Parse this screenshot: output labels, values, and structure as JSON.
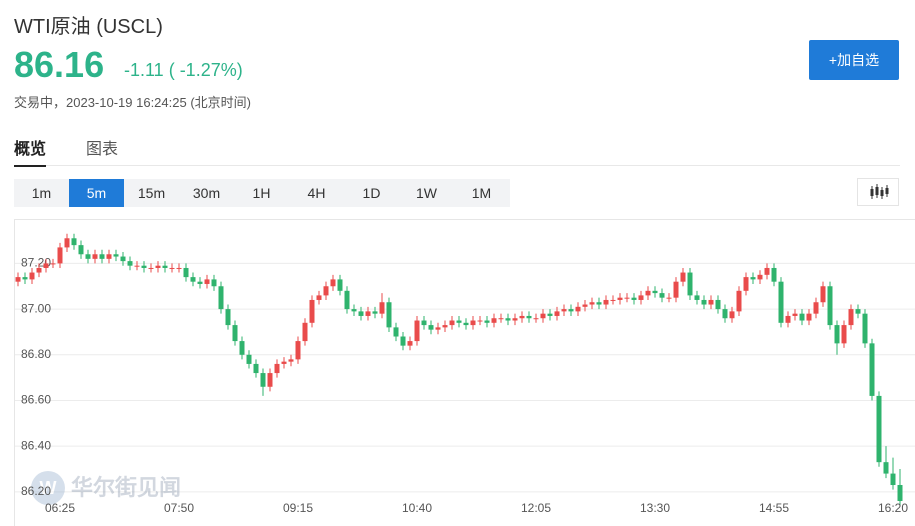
{
  "header": {
    "title": "WTI原油 (USCL)",
    "price": "86.16",
    "change": "-1.11 ( -1.27%)",
    "status": "交易中，2023-10-19 16:24:25 (北京时间)",
    "button": "+加自选"
  },
  "tabs": [
    "概览",
    "图表"
  ],
  "active_tab": "概览",
  "intervals": [
    "1m",
    "5m",
    "15m",
    "30m",
    "1H",
    "4H",
    "1D",
    "1W",
    "1M"
  ],
  "active_interval": "5m",
  "watermark": "华尔街见闻",
  "chart_data": {
    "type": "candlestick",
    "up_color": "#e94b4b",
    "down_color": "#2fb36d",
    "grid": true,
    "ylim": [
      86.16,
      87.39
    ],
    "yticks": [
      {
        "value": 86.2,
        "label": "86.20"
      },
      {
        "value": 86.4,
        "label": "86.40"
      },
      {
        "value": 86.6,
        "label": "86.60"
      },
      {
        "value": 86.8,
        "label": "86.80"
      },
      {
        "value": 87.0,
        "label": "87.00"
      },
      {
        "value": 87.2,
        "label": "87.20"
      }
    ],
    "categories": [
      null,
      null,
      null,
      null,
      null,
      null,
      "06:25",
      null,
      null,
      null,
      null,
      null,
      null,
      null,
      null,
      null,
      null,
      null,
      null,
      null,
      null,
      null,
      null,
      "07:50",
      null,
      null,
      null,
      null,
      null,
      null,
      null,
      null,
      null,
      null,
      null,
      null,
      null,
      null,
      null,
      null,
      "09:15",
      null,
      null,
      null,
      null,
      null,
      null,
      null,
      null,
      null,
      null,
      null,
      null,
      null,
      null,
      null,
      null,
      "10:40",
      null,
      null,
      null,
      null,
      null,
      null,
      null,
      null,
      null,
      null,
      null,
      null,
      null,
      null,
      null,
      null,
      "12:05",
      null,
      null,
      null,
      null,
      null,
      null,
      null,
      null,
      null,
      null,
      null,
      null,
      null,
      null,
      null,
      null,
      "13:30",
      null,
      null,
      null,
      null,
      null,
      null,
      null,
      null,
      null,
      null,
      null,
      null,
      null,
      null,
      null,
      null,
      "14:55",
      null,
      null,
      null,
      null,
      null,
      null,
      null,
      null,
      null,
      null,
      null,
      null,
      null,
      null,
      null,
      null,
      "16:20",
      null
    ],
    "candles": [
      [
        87.12,
        87.16,
        87.1,
        87.14
      ],
      [
        87.14,
        87.16,
        87.11,
        87.13
      ],
      [
        87.13,
        87.18,
        87.11,
        87.16
      ],
      [
        87.16,
        87.2,
        87.14,
        87.18
      ],
      [
        87.18,
        87.22,
        87.16,
        87.2
      ],
      [
        87.2,
        87.22,
        87.18,
        87.2
      ],
      [
        87.2,
        87.29,
        87.18,
        87.27
      ],
      [
        87.27,
        87.33,
        87.25,
        87.31
      ],
      [
        87.31,
        87.33,
        87.26,
        87.28
      ],
      [
        87.28,
        87.3,
        87.22,
        87.24
      ],
      [
        87.24,
        87.26,
        87.2,
        87.22
      ],
      [
        87.22,
        87.26,
        87.2,
        87.24
      ],
      [
        87.24,
        87.26,
        87.2,
        87.22
      ],
      [
        87.22,
        87.26,
        87.2,
        87.24
      ],
      [
        87.24,
        87.26,
        87.21,
        87.23
      ],
      [
        87.23,
        87.25,
        87.19,
        87.21
      ],
      [
        87.21,
        87.23,
        87.17,
        87.19
      ],
      [
        87.19,
        87.21,
        87.17,
        87.19
      ],
      [
        87.19,
        87.21,
        87.16,
        87.18
      ],
      [
        87.18,
        87.2,
        87.16,
        87.18
      ],
      [
        87.18,
        87.21,
        87.16,
        87.19
      ],
      [
        87.19,
        87.21,
        87.16,
        87.18
      ],
      [
        87.18,
        87.2,
        87.16,
        87.18
      ],
      [
        87.18,
        87.2,
        87.16,
        87.18
      ],
      [
        87.18,
        87.2,
        87.12,
        87.14
      ],
      [
        87.14,
        87.16,
        87.1,
        87.12
      ],
      [
        87.12,
        87.14,
        87.09,
        87.11
      ],
      [
        87.11,
        87.15,
        87.09,
        87.13
      ],
      [
        87.13,
        87.15,
        87.08,
        87.1
      ],
      [
        87.1,
        87.12,
        86.98,
        87.0
      ],
      [
        87.0,
        87.02,
        86.91,
        86.93
      ],
      [
        86.93,
        86.95,
        86.84,
        86.86
      ],
      [
        86.86,
        86.88,
        86.78,
        86.8
      ],
      [
        86.8,
        86.82,
        86.74,
        86.76
      ],
      [
        86.76,
        86.78,
        86.7,
        86.72
      ],
      [
        86.72,
        86.74,
        86.62,
        86.66
      ],
      [
        86.66,
        86.74,
        86.64,
        86.72
      ],
      [
        86.72,
        86.78,
        86.7,
        86.76
      ],
      [
        86.76,
        86.79,
        86.74,
        86.77
      ],
      [
        86.77,
        86.8,
        86.75,
        86.78
      ],
      [
        86.78,
        86.88,
        86.76,
        86.86
      ],
      [
        86.86,
        86.96,
        86.84,
        86.94
      ],
      [
        86.94,
        87.06,
        86.92,
        87.04
      ],
      [
        87.04,
        87.08,
        87.02,
        87.06
      ],
      [
        87.06,
        87.12,
        87.04,
        87.1
      ],
      [
        87.1,
        87.15,
        87.08,
        87.13
      ],
      [
        87.13,
        87.15,
        87.06,
        87.08
      ],
      [
        87.08,
        87.1,
        86.98,
        87.0
      ],
      [
        87.0,
        87.02,
        86.97,
        86.99
      ],
      [
        86.99,
        87.01,
        86.95,
        86.97
      ],
      [
        86.97,
        87.01,
        86.95,
        86.99
      ],
      [
        86.99,
        87.01,
        86.96,
        86.98
      ],
      [
        86.98,
        87.07,
        86.96,
        87.03
      ],
      [
        87.03,
        87.05,
        86.9,
        86.92
      ],
      [
        86.92,
        86.94,
        86.86,
        86.88
      ],
      [
        86.88,
        86.9,
        86.82,
        86.84
      ],
      [
        86.84,
        86.88,
        86.82,
        86.86
      ],
      [
        86.86,
        86.97,
        86.84,
        86.95
      ],
      [
        86.95,
        86.97,
        86.91,
        86.93
      ],
      [
        86.93,
        86.95,
        86.89,
        86.91
      ],
      [
        86.91,
        86.94,
        86.89,
        86.92
      ],
      [
        86.92,
        86.95,
        86.9,
        86.93
      ],
      [
        86.93,
        86.97,
        86.91,
        86.95
      ],
      [
        86.95,
        86.97,
        86.92,
        86.94
      ],
      [
        86.94,
        86.96,
        86.91,
        86.93
      ],
      [
        86.93,
        86.97,
        86.91,
        86.95
      ],
      [
        86.95,
        86.97,
        86.93,
        86.95
      ],
      [
        86.95,
        86.97,
        86.92,
        86.94
      ],
      [
        86.94,
        86.98,
        86.92,
        86.96
      ],
      [
        86.96,
        86.98,
        86.94,
        86.96
      ],
      [
        86.96,
        86.98,
        86.93,
        86.95
      ],
      [
        86.95,
        86.98,
        86.93,
        86.96
      ],
      [
        86.96,
        86.99,
        86.94,
        86.97
      ],
      [
        86.97,
        86.99,
        86.94,
        86.96
      ],
      [
        86.96,
        86.98,
        86.94,
        86.96
      ],
      [
        86.96,
        87.0,
        86.94,
        86.98
      ],
      [
        86.98,
        87.0,
        86.95,
        86.97
      ],
      [
        86.97,
        87.01,
        86.95,
        86.99
      ],
      [
        86.99,
        87.02,
        86.97,
        87.0
      ],
      [
        87.0,
        87.02,
        86.97,
        86.99
      ],
      [
        86.99,
        87.03,
        86.97,
        87.01
      ],
      [
        87.01,
        87.04,
        86.99,
        87.02
      ],
      [
        87.02,
        87.05,
        87.0,
        87.03
      ],
      [
        87.03,
        87.05,
        87.0,
        87.02
      ],
      [
        87.02,
        87.06,
        87.0,
        87.04
      ],
      [
        87.04,
        87.06,
        87.02,
        87.04
      ],
      [
        87.04,
        87.07,
        87.02,
        87.05
      ],
      [
        87.05,
        87.07,
        87.03,
        87.05
      ],
      [
        87.05,
        87.07,
        87.02,
        87.04
      ],
      [
        87.04,
        87.08,
        87.02,
        87.06
      ],
      [
        87.06,
        87.1,
        87.04,
        87.08
      ],
      [
        87.08,
        87.1,
        87.05,
        87.07
      ],
      [
        87.07,
        87.09,
        87.03,
        87.05
      ],
      [
        87.05,
        87.07,
        87.03,
        87.05
      ],
      [
        87.05,
        87.14,
        87.03,
        87.12
      ],
      [
        87.12,
        87.18,
        87.1,
        87.16
      ],
      [
        87.16,
        87.18,
        87.04,
        87.06
      ],
      [
        87.06,
        87.08,
        87.02,
        87.04
      ],
      [
        87.04,
        87.06,
        87.0,
        87.02
      ],
      [
        87.02,
        87.06,
        87.0,
        87.04
      ],
      [
        87.04,
        87.06,
        86.98,
        87.0
      ],
      [
        87.0,
        87.02,
        86.94,
        86.96
      ],
      [
        86.96,
        87.01,
        86.94,
        86.99
      ],
      [
        86.99,
        87.1,
        86.97,
        87.08
      ],
      [
        87.08,
        87.16,
        87.06,
        87.14
      ],
      [
        87.14,
        87.16,
        87.11,
        87.13
      ],
      [
        87.13,
        87.17,
        87.11,
        87.15
      ],
      [
        87.15,
        87.2,
        87.13,
        87.18
      ],
      [
        87.18,
        87.2,
        87.1,
        87.12
      ],
      [
        87.12,
        87.14,
        86.92,
        86.94
      ],
      [
        86.94,
        86.99,
        86.92,
        86.97
      ],
      [
        86.97,
        87.0,
        86.95,
        86.98
      ],
      [
        86.98,
        87.0,
        86.93,
        86.95
      ],
      [
        86.95,
        87.0,
        86.93,
        86.98
      ],
      [
        86.98,
        87.05,
        86.96,
        87.03
      ],
      [
        87.03,
        87.12,
        87.01,
        87.1
      ],
      [
        87.1,
        87.12,
        86.91,
        86.93
      ],
      [
        86.93,
        86.95,
        86.8,
        86.85
      ],
      [
        86.85,
        86.95,
        86.83,
        86.93
      ],
      [
        86.93,
        87.02,
        86.91,
        87.0
      ],
      [
        87.0,
        87.02,
        86.96,
        86.98
      ],
      [
        86.98,
        87.0,
        86.83,
        86.85
      ],
      [
        86.85,
        86.87,
        86.6,
        86.62
      ],
      [
        86.62,
        86.64,
        86.31,
        86.33
      ],
      [
        86.33,
        86.4,
        86.26,
        86.28
      ],
      [
        86.28,
        86.35,
        86.21,
        86.23
      ],
      [
        86.23,
        86.3,
        86.14,
        86.16
      ]
    ]
  }
}
